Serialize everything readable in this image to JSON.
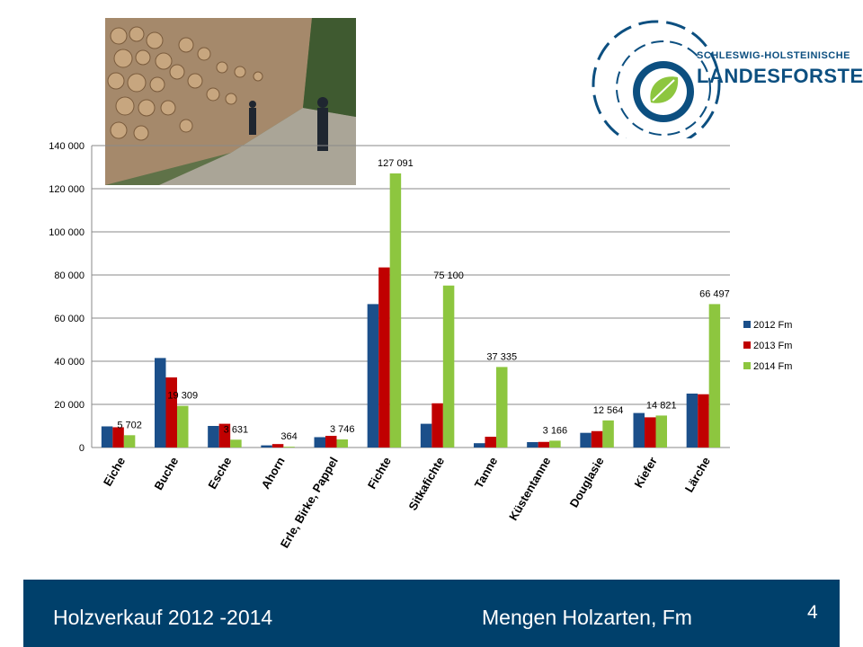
{
  "logo": {
    "line1": "SCHLESWIG-HOLSTEINISCHE",
    "line2": "LANDESFORSTEN"
  },
  "footer": {
    "left_title": "Holzverkauf 2012 -2014",
    "right_title": "Mengen Holzarten, Fm",
    "page_number": "4"
  },
  "chart_data": {
    "type": "bar",
    "categories": [
      "Eiche",
      "Buche",
      "Esche",
      "Ahorn",
      "Erle, Birke, Pappel",
      "Fichte",
      "Sitkafichte",
      "Tanne",
      "Küstentanne",
      "Douglasie",
      "Kiefer",
      "Lärche"
    ],
    "series": [
      {
        "name": "2012 Fm",
        "color": "#1b4f8a",
        "values": [
          9800,
          41500,
          10000,
          1000,
          4800,
          66500,
          11000,
          2000,
          2500,
          6800,
          16000,
          25000
        ]
      },
      {
        "name": "2013 Fm",
        "color": "#c00000",
        "values": [
          9400,
          32500,
          11000,
          1600,
          5400,
          83500,
          20500,
          5000,
          2600,
          7600,
          14000,
          24700
        ]
      },
      {
        "name": "2014 Fm",
        "color": "#8dc63f",
        "values": [
          5702,
          19309,
          3631,
          364,
          3746,
          127091,
          75100,
          37335,
          3166,
          12564,
          14821,
          66497
        ]
      }
    ],
    "data_labels": [
      "5 702",
      "19 309",
      "3 631",
      "364",
      "3 746",
      "127 091",
      "75 100",
      "37 335",
      "3 166",
      "12 564",
      "14 821",
      "66 497"
    ],
    "yticks": [
      0,
      20000,
      40000,
      60000,
      80000,
      100000,
      120000,
      140000
    ],
    "ytick_labels": [
      "0",
      "20 000",
      "40 000",
      "60 000",
      "80 000",
      "100 000",
      "120 000",
      "140 000"
    ],
    "ylim": [
      0,
      140000
    ],
    "grid": true,
    "legend_position": "right"
  }
}
